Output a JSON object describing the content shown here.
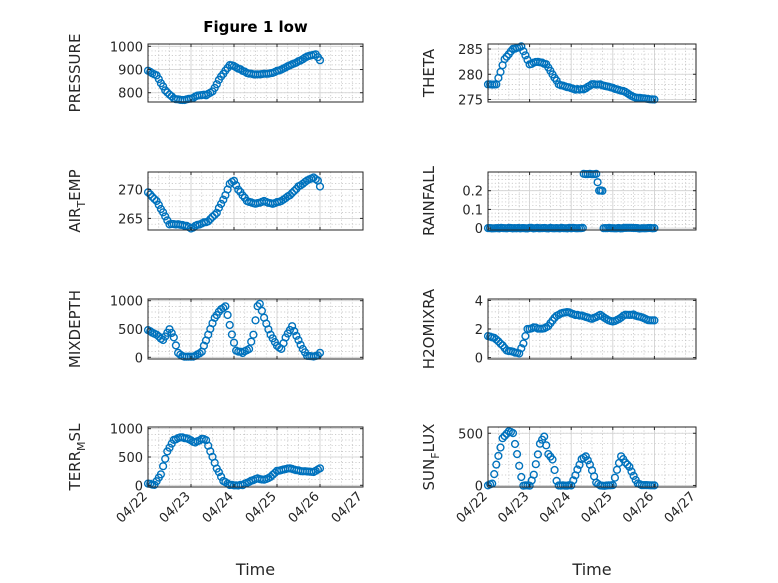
{
  "chart_data": [
    {
      "type": "scatter",
      "title": "Figure 1 low",
      "ylabel": "PRESSURE",
      "ylabel_parts": [
        "PRESSURE"
      ],
      "ylim": [
        760,
        1010
      ],
      "yticks": [
        800,
        900,
        1000
      ],
      "ytick_labels": [
        "800",
        "900",
        "1000"
      ],
      "xticks": [
        0,
        1,
        2,
        3,
        4,
        5
      ],
      "xtick_labels": [],
      "xlabel": "",
      "keypoints": [
        [
          0,
          895
        ],
        [
          0.2,
          875
        ],
        [
          0.4,
          810
        ],
        [
          0.6,
          775
        ],
        [
          0.8,
          768
        ],
        [
          1.0,
          775
        ],
        [
          1.2,
          790
        ],
        [
          1.35,
          790
        ],
        [
          1.5,
          805
        ],
        [
          1.7,
          870
        ],
        [
          1.9,
          920
        ],
        [
          2.0,
          915
        ],
        [
          2.1,
          905
        ],
        [
          2.3,
          885
        ],
        [
          2.5,
          878
        ],
        [
          2.7,
          882
        ],
        [
          2.9,
          885
        ],
        [
          3.1,
          900
        ],
        [
          3.3,
          918
        ],
        [
          3.5,
          935
        ],
        [
          3.7,
          955
        ],
        [
          3.9,
          965
        ],
        [
          4.0,
          940
        ]
      ]
    },
    {
      "type": "scatter",
      "title": "",
      "ylabel": "THETA",
      "ylabel_parts": [
        "THETA"
      ],
      "ylim": [
        274.5,
        286
      ],
      "yticks": [
        275,
        280,
        285
      ],
      "ytick_labels": [
        "275",
        "280",
        "285"
      ],
      "xticks": [
        0,
        1,
        2,
        3,
        4,
        5
      ],
      "xtick_labels": [],
      "xlabel": "",
      "keypoints": [
        [
          0,
          278
        ],
        [
          0.2,
          278
        ],
        [
          0.4,
          283
        ],
        [
          0.6,
          285
        ],
        [
          0.8,
          285.5
        ],
        [
          1.0,
          282
        ],
        [
          1.2,
          282.5
        ],
        [
          1.4,
          282
        ],
        [
          1.55,
          280
        ],
        [
          1.7,
          278
        ],
        [
          1.9,
          277.5
        ],
        [
          2.1,
          277
        ],
        [
          2.3,
          277
        ],
        [
          2.5,
          278
        ],
        [
          2.7,
          278
        ],
        [
          2.9,
          277.5
        ],
        [
          3.1,
          277
        ],
        [
          3.3,
          276.5
        ],
        [
          3.5,
          275.5
        ],
        [
          3.7,
          275.2
        ],
        [
          3.9,
          275
        ],
        [
          4.0,
          275
        ]
      ]
    },
    {
      "type": "scatter",
      "title": "",
      "ylabel": "AIR_TEMP",
      "ylabel_parts": [
        "AIR",
        "T",
        "EMP"
      ],
      "ylim": [
        263,
        273
      ],
      "yticks": [
        265,
        270
      ],
      "ytick_labels": [
        "265",
        "270"
      ],
      "xticks": [
        0,
        1,
        2,
        3,
        4,
        5
      ],
      "xtick_labels": [],
      "xlabel": "",
      "keypoints": [
        [
          0,
          269.5
        ],
        [
          0.2,
          268
        ],
        [
          0.35,
          266
        ],
        [
          0.5,
          264
        ],
        [
          0.7,
          264
        ],
        [
          0.9,
          263.7
        ],
        [
          1.0,
          263.3
        ],
        [
          1.2,
          264
        ],
        [
          1.4,
          264.5
        ],
        [
          1.6,
          266
        ],
        [
          1.8,
          269
        ],
        [
          1.9,
          271
        ],
        [
          2.0,
          271.5
        ],
        [
          2.1,
          270
        ],
        [
          2.3,
          268
        ],
        [
          2.5,
          267.5
        ],
        [
          2.7,
          268
        ],
        [
          2.9,
          267.5
        ],
        [
          3.1,
          268
        ],
        [
          3.3,
          269
        ],
        [
          3.5,
          270.5
        ],
        [
          3.7,
          271.5
        ],
        [
          3.85,
          272
        ],
        [
          3.95,
          271.5
        ],
        [
          4.0,
          270.5
        ]
      ]
    },
    {
      "type": "scatter",
      "title": "",
      "ylabel": "RAINFALL",
      "ylabel_parts": [
        "RAINFALL"
      ],
      "ylim": [
        -0.01,
        0.3
      ],
      "yticks": [
        0,
        0.1,
        0.2
      ],
      "ytick_labels": [
        "0",
        "0.1",
        "0.2"
      ],
      "xticks": [
        0,
        1,
        2,
        3,
        4,
        5
      ],
      "xtick_labels": [],
      "xlabel": "",
      "keypoints": [
        [
          0,
          0
        ],
        [
          0.5,
          0
        ],
        [
          1.0,
          0
        ],
        [
          1.5,
          0
        ],
        [
          2.0,
          0
        ],
        [
          2.28,
          0
        ],
        [
          2.3,
          0.29
        ],
        [
          2.45,
          0.29
        ],
        [
          2.6,
          0.29
        ],
        [
          2.67,
          0.2
        ],
        [
          2.75,
          0.2
        ],
        [
          2.78,
          0
        ],
        [
          3.0,
          0
        ],
        [
          3.5,
          0
        ],
        [
          4.0,
          0
        ]
      ]
    },
    {
      "type": "scatter",
      "title": "",
      "ylabel": "MIXDEPTH",
      "ylabel_parts": [
        "MIXDEPTH"
      ],
      "ylim": [
        -30,
        1030
      ],
      "yticks": [
        0,
        500,
        1000
      ],
      "ytick_labels": [
        "0",
        "500",
        "1000"
      ],
      "xticks": [
        0,
        1,
        2,
        3,
        4,
        5
      ],
      "xtick_labels": [],
      "xlabel": "",
      "keypoints": [
        [
          0,
          480
        ],
        [
          0.2,
          400
        ],
        [
          0.35,
          300
        ],
        [
          0.5,
          500
        ],
        [
          0.6,
          350
        ],
        [
          0.7,
          80
        ],
        [
          0.8,
          20
        ],
        [
          0.9,
          10
        ],
        [
          1.0,
          15
        ],
        [
          1.1,
          20
        ],
        [
          1.25,
          100
        ],
        [
          1.4,
          400
        ],
        [
          1.55,
          700
        ],
        [
          1.7,
          850
        ],
        [
          1.8,
          900
        ],
        [
          1.85,
          750
        ],
        [
          1.95,
          400
        ],
        [
          2.05,
          120
        ],
        [
          2.2,
          80
        ],
        [
          2.35,
          150
        ],
        [
          2.45,
          400
        ],
        [
          2.55,
          900
        ],
        [
          2.6,
          950
        ],
        [
          2.7,
          700
        ],
        [
          2.85,
          400
        ],
        [
          3.0,
          200
        ],
        [
          3.1,
          150
        ],
        [
          3.2,
          350
        ],
        [
          3.35,
          550
        ],
        [
          3.5,
          300
        ],
        [
          3.6,
          150
        ],
        [
          3.7,
          20
        ],
        [
          3.85,
          10
        ],
        [
          3.95,
          30
        ],
        [
          4.0,
          80
        ]
      ]
    },
    {
      "type": "scatter",
      "title": "",
      "ylabel": "H2OMIXRA",
      "ylabel_parts": [
        "H2OMIXRA"
      ],
      "ylim": [
        -0.1,
        4.1
      ],
      "yticks": [
        0,
        2,
        4
      ],
      "ytick_labels": [
        "0",
        "2",
        "4"
      ],
      "xticks": [
        0,
        1,
        2,
        3,
        4,
        5
      ],
      "xtick_labels": [],
      "xlabel": "",
      "keypoints": [
        [
          0,
          1.5
        ],
        [
          0.15,
          1.4
        ],
        [
          0.3,
          1.0
        ],
        [
          0.45,
          0.5
        ],
        [
          0.6,
          0.4
        ],
        [
          0.75,
          0.3
        ],
        [
          0.85,
          1.0
        ],
        [
          0.95,
          2.0
        ],
        [
          1.1,
          2.1
        ],
        [
          1.3,
          2.0
        ],
        [
          1.45,
          2.2
        ],
        [
          1.6,
          2.8
        ],
        [
          1.75,
          3.1
        ],
        [
          1.9,
          3.2
        ],
        [
          2.1,
          3.0
        ],
        [
          2.3,
          2.9
        ],
        [
          2.5,
          2.7
        ],
        [
          2.7,
          3.0
        ],
        [
          2.9,
          2.6
        ],
        [
          3.0,
          2.5
        ],
        [
          3.15,
          2.7
        ],
        [
          3.3,
          3.0
        ],
        [
          3.5,
          3.0
        ],
        [
          3.7,
          2.8
        ],
        [
          3.85,
          2.6
        ],
        [
          4.0,
          2.6
        ]
      ]
    },
    {
      "type": "scatter",
      "title": "",
      "ylabel": "TERR_MSL",
      "ylabel_parts": [
        "TERR",
        "M",
        "SL"
      ],
      "ylim": [
        -30,
        1030
      ],
      "yticks": [
        0,
        500,
        1000
      ],
      "ytick_labels": [
        "0",
        "500",
        "1000"
      ],
      "xticks": [
        0,
        1,
        2,
        3,
        4,
        5
      ],
      "xtick_labels": [
        "04/22",
        "04/23",
        "04/24",
        "04/25",
        "04/26",
        "04/27"
      ],
      "xlabel": "Time",
      "keypoints": [
        [
          0,
          30
        ],
        [
          0.15,
          10
        ],
        [
          0.3,
          200
        ],
        [
          0.45,
          600
        ],
        [
          0.6,
          800
        ],
        [
          0.75,
          850
        ],
        [
          0.9,
          830
        ],
        [
          1.0,
          800
        ],
        [
          1.1,
          750
        ],
        [
          1.25,
          820
        ],
        [
          1.35,
          800
        ],
        [
          1.45,
          600
        ],
        [
          1.6,
          300
        ],
        [
          1.75,
          80
        ],
        [
          1.9,
          10
        ],
        [
          2.0,
          0
        ],
        [
          2.2,
          5
        ],
        [
          2.4,
          80
        ],
        [
          2.55,
          120
        ],
        [
          2.7,
          100
        ],
        [
          2.85,
          150
        ],
        [
          3.0,
          250
        ],
        [
          3.15,
          280
        ],
        [
          3.3,
          300
        ],
        [
          3.5,
          260
        ],
        [
          3.7,
          240
        ],
        [
          3.85,
          230
        ],
        [
          4.0,
          300
        ]
      ]
    },
    {
      "type": "scatter",
      "title": "",
      "ylabel": "SUN_FLUX",
      "ylabel_parts": [
        "SUN",
        "F",
        "LUX"
      ],
      "ylim": [
        -15,
        560
      ],
      "yticks": [
        0,
        500
      ],
      "ytick_labels": [
        "0",
        "500"
      ],
      "xticks": [
        0,
        1,
        2,
        3,
        4,
        5
      ],
      "xtick_labels": [
        "04/22",
        "04/23",
        "04/24",
        "04/25",
        "04/26",
        "04/27"
      ],
      "xlabel": "Time",
      "keypoints": [
        [
          0,
          0
        ],
        [
          0.1,
          20
        ],
        [
          0.2,
          200
        ],
        [
          0.35,
          450
        ],
        [
          0.5,
          520
        ],
        [
          0.6,
          500
        ],
        [
          0.7,
          300
        ],
        [
          0.8,
          80
        ],
        [
          0.85,
          0
        ],
        [
          1.0,
          0
        ],
        [
          1.1,
          100
        ],
        [
          1.25,
          400
        ],
        [
          1.35,
          470
        ],
        [
          1.45,
          300
        ],
        [
          1.55,
          250
        ],
        [
          1.6,
          150
        ],
        [
          1.65,
          40
        ],
        [
          1.7,
          0
        ],
        [
          1.85,
          0
        ],
        [
          2.0,
          0
        ],
        [
          2.1,
          100
        ],
        [
          2.25,
          250
        ],
        [
          2.35,
          280
        ],
        [
          2.45,
          200
        ],
        [
          2.6,
          30
        ],
        [
          2.7,
          0
        ],
        [
          2.9,
          0
        ],
        [
          3.0,
          0
        ],
        [
          3.1,
          150
        ],
        [
          3.2,
          280
        ],
        [
          3.3,
          220
        ],
        [
          3.4,
          180
        ],
        [
          3.5,
          90
        ],
        [
          3.6,
          20
        ],
        [
          3.7,
          0
        ],
        [
          3.9,
          0
        ],
        [
          4.0,
          0
        ]
      ]
    }
  ]
}
